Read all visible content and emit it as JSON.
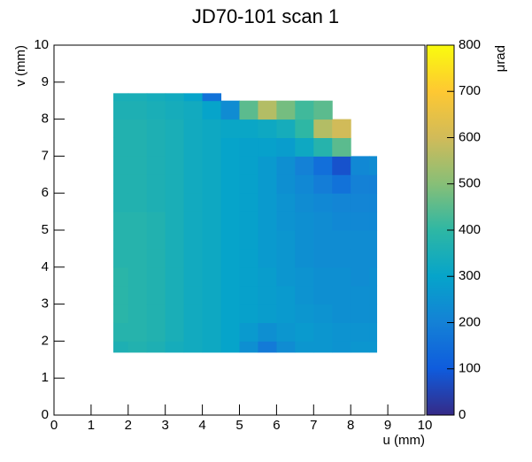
{
  "chart_data": {
    "type": "heatmap",
    "title": "JD70-101 scan 1",
    "xlabel": "u (mm)",
    "ylabel": "v (mm)",
    "zlabel": "μrad",
    "xlim": [
      0,
      10
    ],
    "ylim": [
      0,
      10
    ],
    "xticks": [
      0,
      1,
      2,
      3,
      4,
      5,
      6,
      7,
      8,
      9,
      10
    ],
    "yticks": [
      0,
      1,
      2,
      3,
      4,
      5,
      6,
      7,
      8,
      9,
      10
    ],
    "zlim": [
      0,
      800
    ],
    "zticks": [
      0,
      100,
      200,
      300,
      400,
      500,
      600,
      700,
      800
    ],
    "colormap": [
      "#352a87",
      "#0f5cdd",
      "#1481d6",
      "#06a4ca",
      "#2eb7a4",
      "#87bf77",
      "#d1bb59",
      "#fec832",
      "#f9fb0e"
    ],
    "xbins": [
      1.6,
      2,
      2.5,
      3,
      3.5,
      4,
      4.5,
      5,
      5.5,
      6,
      6.5,
      7,
      7.5,
      8,
      8.5,
      8.7
    ],
    "ybins": [
      1.7,
      2,
      2.5,
      3,
      3.5,
      4,
      4.5,
      5,
      5.5,
      6,
      6.5,
      7,
      7.5,
      8,
      8.5,
      8.7
    ],
    "z": [
      [
        360,
        370,
        360,
        340,
        330,
        320,
        300,
        240,
        180,
        230,
        260,
        260,
        250,
        260,
        260
      ],
      [
        380,
        380,
        370,
        350,
        330,
        320,
        300,
        270,
        240,
        260,
        270,
        260,
        250,
        250,
        250
      ],
      [
        390,
        380,
        370,
        350,
        330,
        320,
        300,
        290,
        280,
        270,
        260,
        250,
        240,
        240,
        240
      ],
      [
        390,
        380,
        370,
        350,
        330,
        320,
        300,
        290,
        280,
        270,
        250,
        240,
        240,
        240,
        240
      ],
      [
        390,
        380,
        370,
        350,
        330,
        320,
        300,
        290,
        280,
        260,
        250,
        240,
        240,
        230,
        240
      ],
      [
        380,
        380,
        370,
        350,
        330,
        320,
        300,
        290,
        270,
        260,
        240,
        230,
        230,
        230,
        230
      ],
      [
        380,
        380,
        370,
        350,
        330,
        320,
        300,
        290,
        270,
        260,
        240,
        230,
        230,
        230,
        230
      ],
      [
        380,
        380,
        370,
        350,
        330,
        320,
        300,
        290,
        270,
        250,
        240,
        230,
        220,
        220,
        220
      ],
      [
        370,
        370,
        360,
        350,
        330,
        320,
        300,
        290,
        270,
        250,
        230,
        220,
        210,
        210,
        210
      ],
      [
        370,
        370,
        360,
        350,
        330,
        320,
        300,
        290,
        270,
        240,
        220,
        190,
        160,
        200,
        200
      ],
      [
        370,
        370,
        360,
        350,
        330,
        320,
        300,
        290,
        270,
        240,
        200,
        150,
        80,
        220,
        230
      ],
      [
        370,
        370,
        360,
        350,
        330,
        320,
        300,
        290,
        290,
        280,
        320,
        380,
        450,
        null,
        null
      ],
      [
        370,
        370,
        360,
        350,
        330,
        320,
        310,
        310,
        320,
        340,
        400,
        560,
        600,
        null,
        null
      ],
      [
        360,
        360,
        350,
        340,
        330,
        300,
        230,
        450,
        560,
        480,
        420,
        450,
        null,
        null,
        null
      ],
      [
        350,
        350,
        340,
        330,
        300,
        160,
        null,
        null,
        null,
        null,
        null,
        null,
        null,
        null,
        null
      ]
    ]
  }
}
